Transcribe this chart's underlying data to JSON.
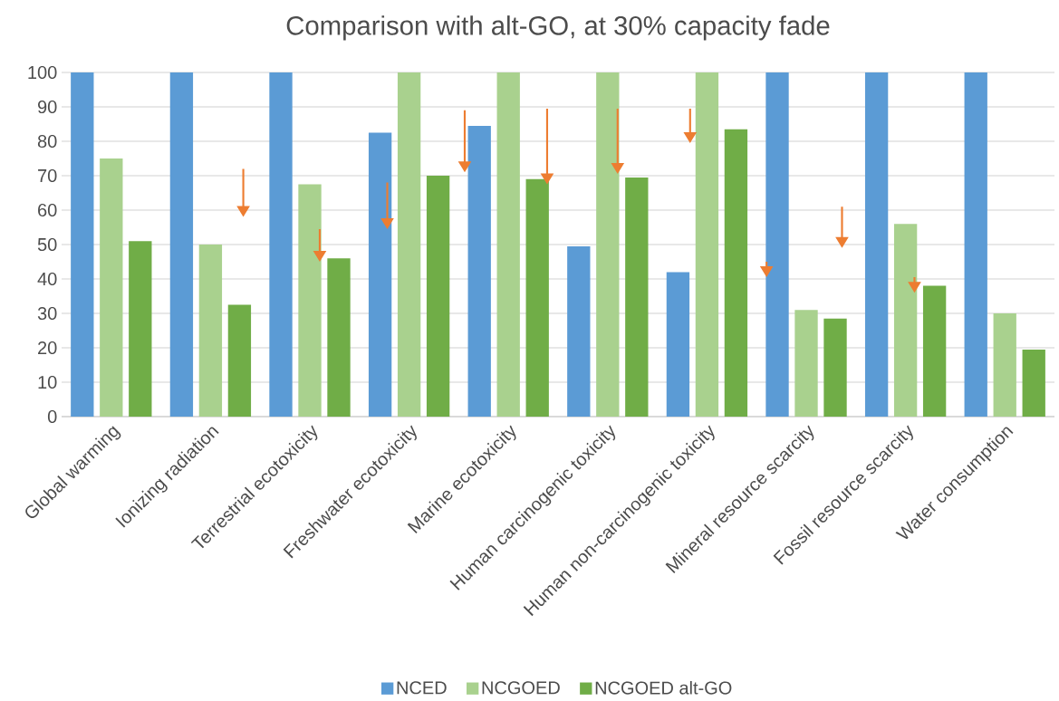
{
  "chart_data": {
    "type": "bar",
    "title": "Comparison with alt-GO, at 30% capacity fade",
    "categories": [
      "Global warming",
      "Ionizing radiation",
      "Terrestrial ecotoxicity",
      "Freshwater ecotoxicity",
      "Marine ecotoxicity",
      "Human carcinogenic toxicity",
      "Human non-carcinogenic toxicity",
      "Mineral resource scarcity",
      "Fossil resource scarcity",
      "Water consumption"
    ],
    "series": [
      {
        "name": "NCED",
        "color": "#5b9bd5",
        "values": [
          100,
          100,
          100,
          82.5,
          84.5,
          49.5,
          42,
          100,
          100,
          100
        ]
      },
      {
        "name": "NCGOED",
        "color": "#a9d18e",
        "values": [
          75,
          50,
          67.5,
          100,
          100,
          100,
          100,
          31,
          56,
          30
        ]
      },
      {
        "name": "NCGOED alt-GO",
        "color": "#70ad47",
        "values": [
          51,
          32.5,
          46,
          70,
          69,
          69.5,
          83.5,
          28.5,
          38,
          19.5
        ]
      }
    ],
    "ylim": [
      0,
      100
    ],
    "yticks": [
      0,
      10,
      20,
      30,
      40,
      50,
      60,
      70,
      80,
      90,
      100
    ],
    "grid": "y",
    "legend": "bottom"
  }
}
